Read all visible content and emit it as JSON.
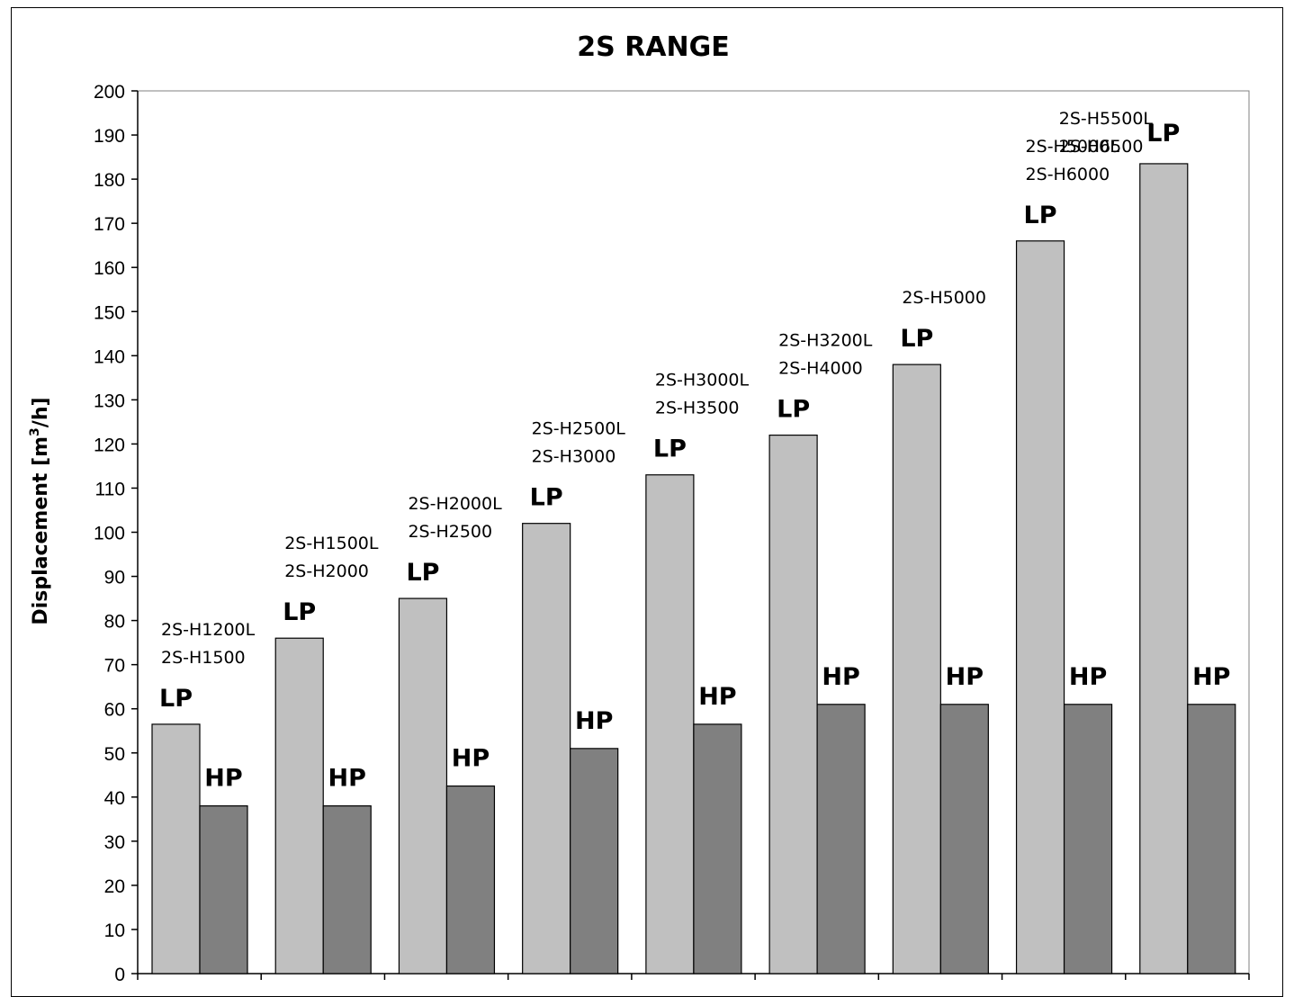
{
  "chart_data": {
    "type": "bar",
    "title": "2S RANGE",
    "ylabel": "Displacement [m3/h]",
    "ylabel_parts": {
      "prefix": "Displacement [m",
      "sup": "3",
      "suffix": "/h]"
    },
    "xlabel": "",
    "ylim": [
      0,
      200
    ],
    "ytick_step": 10,
    "ytick_labels": [
      "0",
      "10",
      "20",
      "30",
      "40",
      "50",
      "60",
      "70",
      "80",
      "90",
      "100",
      "110",
      "120",
      "130",
      "140",
      "150",
      "160",
      "170",
      "180",
      "190",
      "200"
    ],
    "grid": false,
    "legend": "none",
    "categories": [
      [
        "2S-H1200L",
        "2S-H1500"
      ],
      [
        "2S-H1500L",
        "2S-H2000"
      ],
      [
        "2S-H2000L",
        "2S-H2500"
      ],
      [
        "2S-H2500L",
        "2S-H3000"
      ],
      [
        "2S-H3000L",
        "2S-H3500"
      ],
      [
        "2S-H3200L",
        "2S-H4000"
      ],
      [
        "2S-H5000"
      ],
      [
        "2S-H5000L",
        "2S-H6000"
      ],
      [
        "2S-H5500L",
        "2S-H6500"
      ]
    ],
    "series": [
      {
        "name": "LP",
        "color": "#c0c0c0",
        "values": [
          56.5,
          76,
          85,
          102,
          113,
          122,
          138,
          166,
          183.5
        ]
      },
      {
        "name": "HP",
        "color": "#808080",
        "values": [
          38,
          38,
          42.5,
          51,
          56.5,
          61,
          61,
          61,
          61
        ]
      }
    ]
  }
}
